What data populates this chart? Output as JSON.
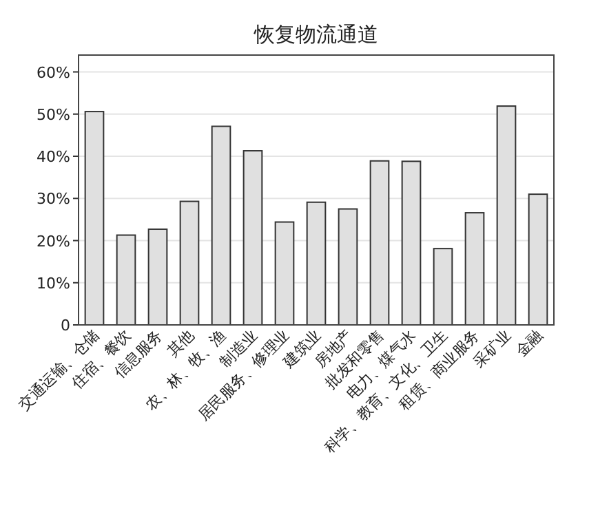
{
  "chart_data": {
    "type": "bar",
    "title": "恢复物流通道",
    "categories": [
      "交通运输、仓储",
      "住宿、餐饮",
      "信息服务",
      "其他",
      "农、林、牧、渔",
      "制造业",
      "居民服务、修理业",
      "建筑业",
      "房地产",
      "批发和零售",
      "电力、煤气水",
      "科学、教育、文化、卫生",
      "租赁、商业服务",
      "采矿业",
      "金融"
    ],
    "values": [
      50.6,
      21.3,
      22.7,
      29.3,
      47.1,
      41.3,
      24.4,
      29.1,
      27.5,
      38.9,
      38.8,
      18.1,
      26.6,
      51.9,
      31.0
    ],
    "color": "#e0e0e0",
    "ylim": [
      0,
      64
    ],
    "yticks": [
      0,
      {
        "value": 10,
        "label": "10%"
      },
      {
        "value": 20,
        "label": "20%"
      },
      {
        "value": 30,
        "label": "30%"
      },
      {
        "value": 40,
        "label": "40%"
      },
      {
        "value": 50,
        "label": "50%"
      },
      {
        "value": 60,
        "label": "60%"
      }
    ],
    "grid": "y"
  }
}
